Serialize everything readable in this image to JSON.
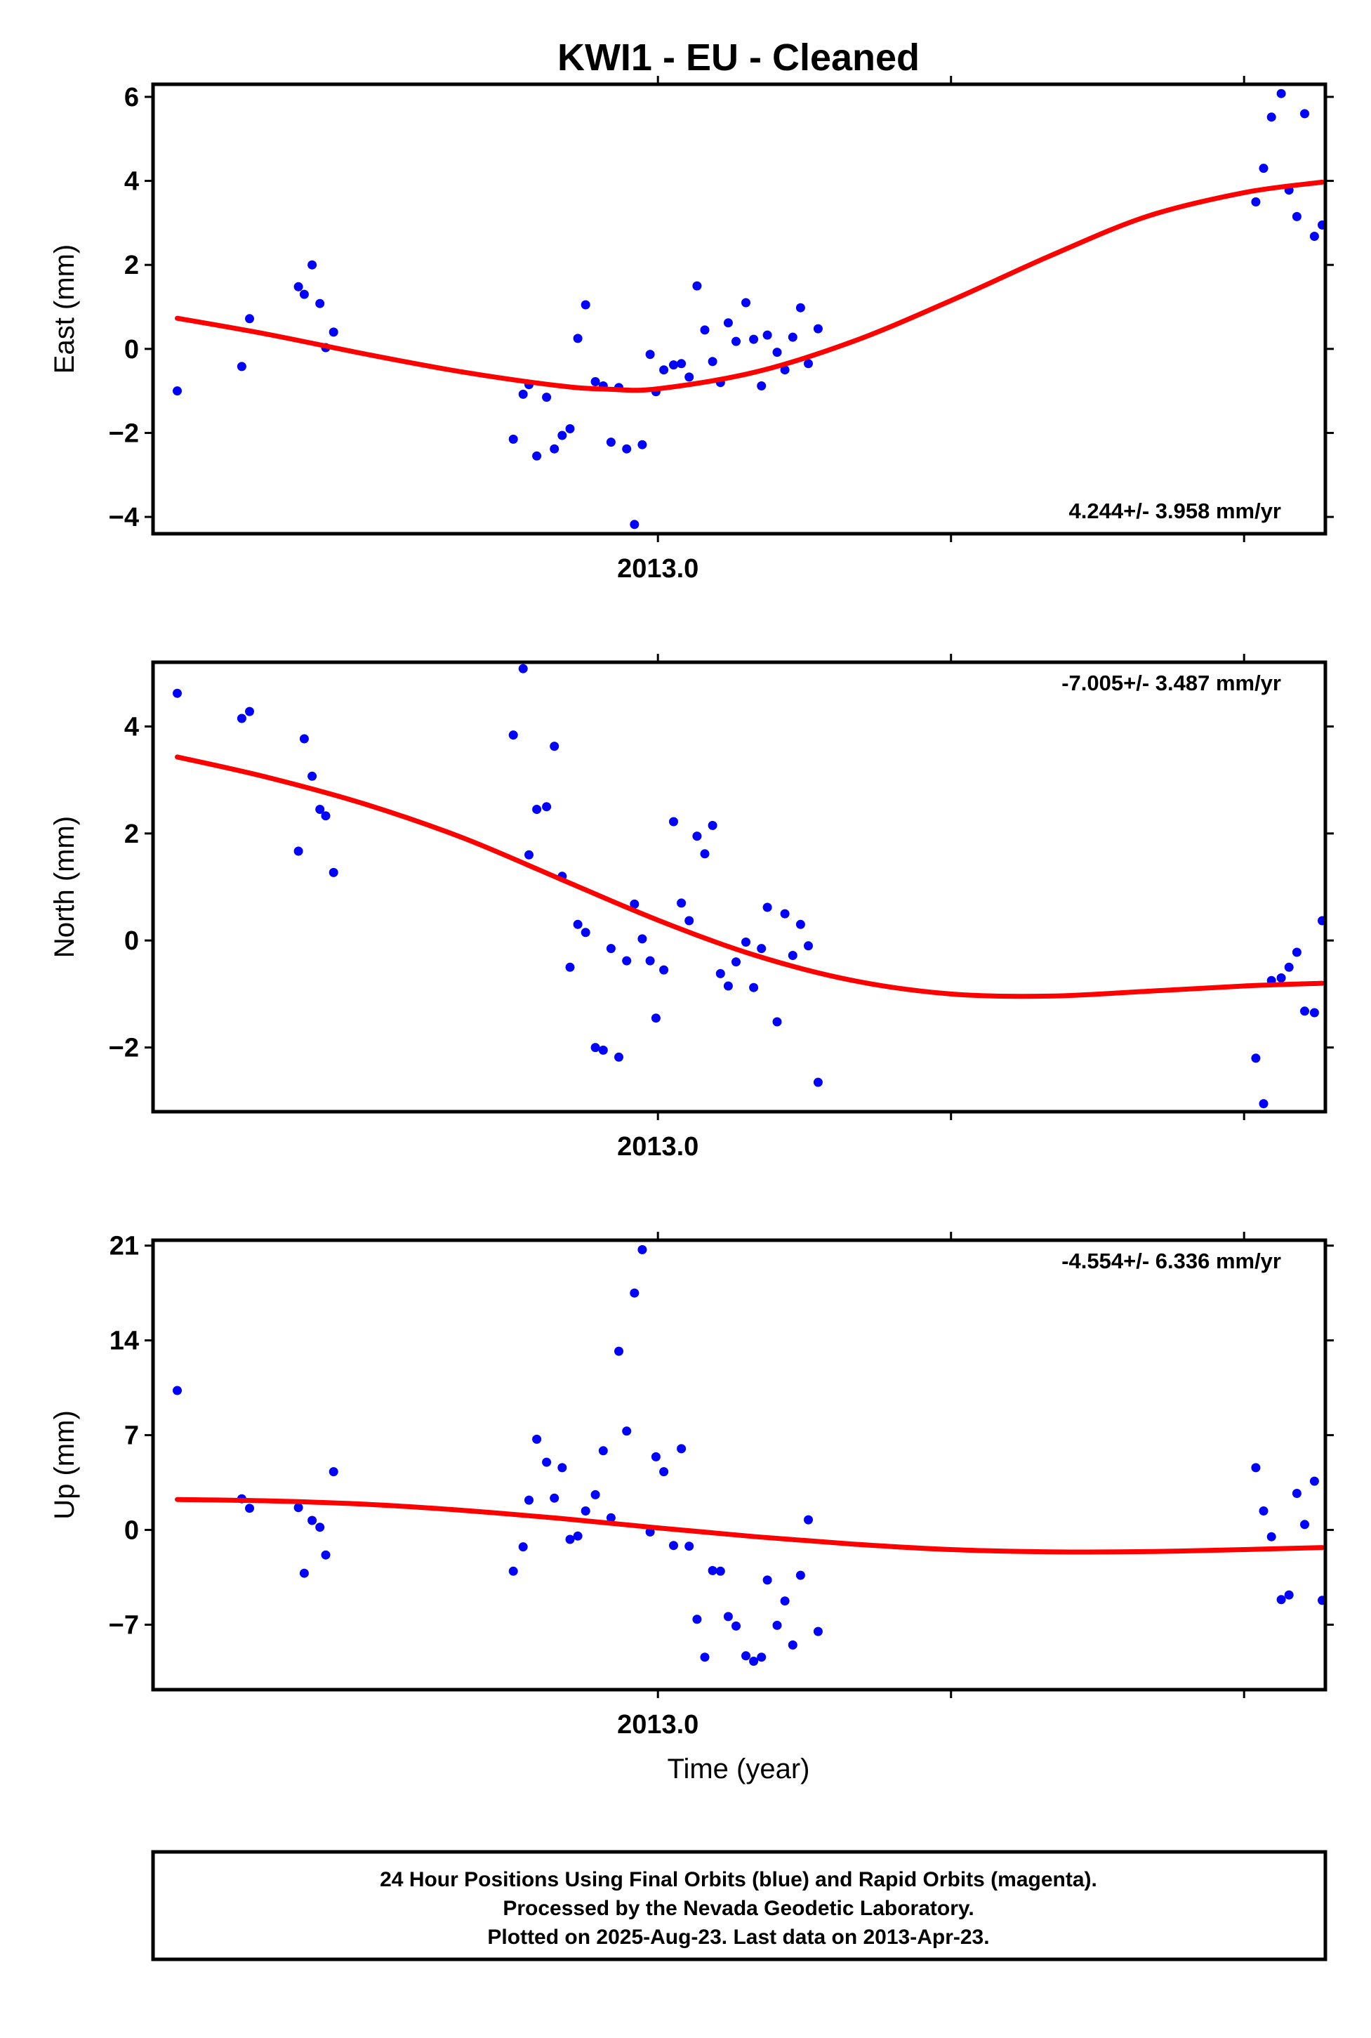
{
  "title": "KWI1  - EU - Cleaned",
  "xlabel": "Time (year)",
  "caption": [
    "24 Hour Positions Using Final Orbits (blue) and Rapid Orbits (magenta).",
    "Processed by the Nevada Geodetic Laboratory.",
    "Plotted on 2025-Aug-23. Last data on 2013-Apr-23."
  ],
  "colors": {
    "data": "#0000ff",
    "fit": "#ff0000",
    "frame": "#000000"
  },
  "chart_data": [
    {
      "type": "scatter",
      "ylabel": "East (mm)",
      "rate_text": "4.244+/- 3.958 mm/yr",
      "xlim": [
        2012.7416,
        2013.3416
      ],
      "ylim": [
        -4.4,
        6.3
      ],
      "yticks": [
        -4,
        -2,
        0,
        2,
        4,
        6
      ],
      "ytick_labels": [
        "−4",
        "−2",
        "0",
        "2",
        "4",
        "6"
      ],
      "xticks": [
        2013.0,
        2013.15,
        2013.3
      ],
      "xtick_labels": [
        "2013.0",
        "",
        ""
      ],
      "x": [
        2012.754,
        2012.787,
        2012.791,
        2012.816,
        2012.819,
        2012.823,
        2012.827,
        2012.83,
        2012.834,
        2012.926,
        2012.931,
        2012.934,
        2012.938,
        2012.943,
        2012.947,
        2012.951,
        2012.955,
        2012.959,
        2012.963,
        2012.968,
        2012.972,
        2012.976,
        2012.98,
        2012.984,
        2012.988,
        2012.992,
        2012.996,
        2012.999,
        2013.003,
        2013.008,
        2013.012,
        2013.016,
        2013.02,
        2013.024,
        2013.028,
        2013.032,
        2013.036,
        2013.04,
        2013.045,
        2013.049,
        2013.053,
        2013.056,
        2013.061,
        2013.065,
        2013.069,
        2013.073,
        2013.077,
        2013.082,
        2013.306,
        2013.31,
        2013.314,
        2013.319,
        2013.323,
        2013.327,
        2013.331,
        2013.336,
        2013.34
      ],
      "values": [
        -1.0,
        -0.42,
        0.72,
        1.48,
        1.3,
        2.0,
        1.08,
        0.03,
        0.4,
        -2.15,
        -1.08,
        -0.85,
        -2.55,
        -1.15,
        -2.38,
        -2.06,
        -1.9,
        0.25,
        1.05,
        -0.78,
        -0.88,
        -2.22,
        -0.92,
        -2.38,
        -4.18,
        -2.28,
        -0.13,
        -1.02,
        -0.5,
        -0.38,
        -0.35,
        -0.67,
        1.5,
        0.45,
        -0.3,
        -0.8,
        0.62,
        0.18,
        1.1,
        0.23,
        -0.88,
        0.33,
        -0.08,
        -0.5,
        0.28,
        0.98,
        -0.35,
        0.48,
        3.5,
        4.3,
        5.52,
        6.08,
        3.78,
        3.15,
        5.6,
        2.68,
        2.95
      ],
      "fit_x": [
        2012.754,
        2012.8,
        2012.85,
        2012.9,
        2012.95,
        2012.975,
        2013.0,
        2013.05,
        2013.1,
        2013.15,
        2013.2,
        2013.25,
        2013.3,
        2013.34
      ],
      "fit_y": [
        0.73,
        0.35,
        -0.12,
        -0.55,
        -0.88,
        -0.96,
        -0.95,
        -0.55,
        0.18,
        1.15,
        2.2,
        3.15,
        3.72,
        3.97
      ]
    },
    {
      "type": "scatter",
      "ylabel": "North (mm)",
      "rate_text": "-7.005+/- 3.487 mm/yr",
      "xlim": [
        2012.7416,
        2013.3416
      ],
      "ylim": [
        -3.2,
        5.2
      ],
      "yticks": [
        -2,
        0,
        2,
        4
      ],
      "ytick_labels": [
        "−2",
        "0",
        "2",
        "4"
      ],
      "xticks": [
        2013.0,
        2013.15,
        2013.3
      ],
      "xtick_labels": [
        "2013.0",
        "",
        ""
      ],
      "x": [
        2012.754,
        2012.787,
        2012.791,
        2012.816,
        2012.819,
        2012.823,
        2012.827,
        2012.83,
        2012.834,
        2012.926,
        2012.931,
        2012.934,
        2012.938,
        2012.943,
        2012.947,
        2012.951,
        2012.955,
        2012.959,
        2012.963,
        2012.968,
        2012.972,
        2012.976,
        2012.98,
        2012.984,
        2012.988,
        2012.992,
        2012.996,
        2012.999,
        2013.003,
        2013.008,
        2013.012,
        2013.016,
        2013.02,
        2013.024,
        2013.028,
        2013.032,
        2013.036,
        2013.04,
        2013.045,
        2013.049,
        2013.053,
        2013.056,
        2013.061,
        2013.065,
        2013.069,
        2013.073,
        2013.077,
        2013.082,
        2013.306,
        2013.31,
        2013.314,
        2013.319,
        2013.323,
        2013.327,
        2013.331,
        2013.336,
        2013.34
      ],
      "values": [
        4.62,
        4.15,
        4.28,
        1.67,
        3.77,
        3.07,
        2.45,
        2.33,
        1.27,
        3.84,
        5.08,
        1.6,
        2.45,
        2.5,
        3.63,
        1.2,
        -0.5,
        0.3,
        0.15,
        -2.0,
        -2.05,
        -0.15,
        -2.18,
        -0.38,
        0.68,
        0.03,
        -0.38,
        -1.45,
        -0.55,
        2.22,
        0.7,
        0.37,
        1.95,
        1.62,
        2.15,
        -0.62,
        -0.85,
        -0.4,
        -0.03,
        -0.88,
        -0.15,
        0.62,
        -1.52,
        0.5,
        -0.28,
        0.3,
        -0.1,
        -2.65,
        -2.2,
        -3.05,
        -0.75,
        -0.7,
        -0.5,
        -0.22,
        -1.32,
        -1.35,
        0.37
      ],
      "fit_x": [
        2012.754,
        2012.8,
        2012.85,
        2012.9,
        2012.95,
        2013.0,
        2013.05,
        2013.1,
        2013.15,
        2013.2,
        2013.25,
        2013.3,
        2013.34
      ],
      "fit_y": [
        3.43,
        3.05,
        2.55,
        1.92,
        1.15,
        0.38,
        -0.28,
        -0.75,
        -1.0,
        -1.04,
        -0.95,
        -0.85,
        -0.8
      ]
    },
    {
      "type": "scatter",
      "ylabel": "Up (mm)",
      "rate_text": "-4.554+/- 6.336 mm/yr",
      "xlim": [
        2012.7416,
        2013.3416
      ],
      "ylim": [
        -11.8,
        21.4
      ],
      "yticks": [
        -7,
        0,
        7,
        14,
        21
      ],
      "ytick_labels": [
        "−7",
        "0",
        "7",
        "14",
        "21"
      ],
      "xticks": [
        2013.0,
        2013.15,
        2013.3
      ],
      "xtick_labels": [
        "2013.0",
        "",
        ""
      ],
      "x": [
        2012.754,
        2012.787,
        2012.791,
        2012.816,
        2012.819,
        2012.823,
        2012.827,
        2012.83,
        2012.834,
        2012.926,
        2012.931,
        2012.934,
        2012.938,
        2012.943,
        2012.947,
        2012.951,
        2012.955,
        2012.959,
        2012.963,
        2012.968,
        2012.972,
        2012.976,
        2012.98,
        2012.984,
        2012.988,
        2012.992,
        2012.996,
        2012.999,
        2013.003,
        2013.008,
        2013.012,
        2013.016,
        2013.02,
        2013.024,
        2013.028,
        2013.032,
        2013.036,
        2013.04,
        2013.045,
        2013.049,
        2013.053,
        2013.056,
        2013.061,
        2013.065,
        2013.069,
        2013.073,
        2013.077,
        2013.082,
        2013.306,
        2013.31,
        2013.314,
        2013.319,
        2013.323,
        2013.327,
        2013.331,
        2013.336,
        2013.34
      ],
      "values": [
        10.3,
        2.3,
        1.6,
        1.65,
        -3.2,
        0.7,
        0.2,
        -1.85,
        4.3,
        -3.05,
        -1.25,
        2.2,
        6.7,
        5.0,
        2.35,
        4.6,
        -0.7,
        -0.45,
        1.4,
        2.6,
        5.85,
        0.9,
        13.2,
        7.3,
        17.5,
        20.7,
        -0.15,
        5.4,
        4.3,
        -1.15,
        6.0,
        -1.2,
        -6.6,
        -9.4,
        -3.0,
        -3.05,
        -6.4,
        -7.1,
        -9.3,
        -9.7,
        -9.4,
        -3.7,
        -7.05,
        -5.25,
        -8.5,
        -3.35,
        0.75,
        -7.5,
        4.6,
        1.4,
        -0.5,
        -5.15,
        -4.8,
        2.7,
        0.4,
        3.6,
        -5.2
      ],
      "fit_x": [
        2012.754,
        2012.8,
        2012.85,
        2012.9,
        2012.95,
        2013.0,
        2013.05,
        2013.1,
        2013.15,
        2013.2,
        2013.25,
        2013.3,
        2013.34
      ],
      "fit_y": [
        2.25,
        2.15,
        1.9,
        1.45,
        0.85,
        0.15,
        -0.5,
        -1.05,
        -1.45,
        -1.62,
        -1.6,
        -1.45,
        -1.3
      ]
    }
  ]
}
